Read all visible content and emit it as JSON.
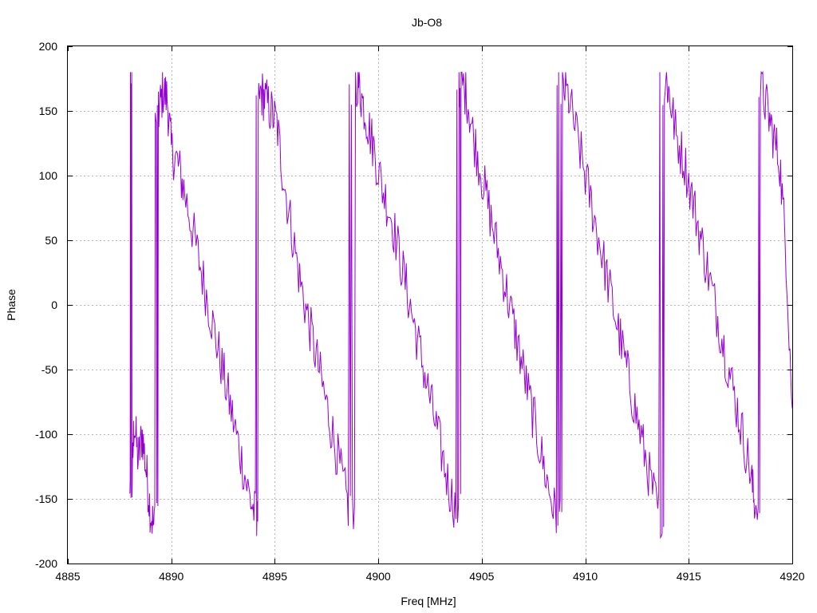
{
  "colors": {
    "series": "#9400d3",
    "grid": "#a0a0a0",
    "axis": "#000000",
    "background": "#ffffff"
  },
  "chart_data": {
    "type": "line",
    "title": "Jb-O8",
    "xlabel": "Freq [MHz]",
    "ylabel": "Phase",
    "xlim": [
      4885,
      4920
    ],
    "ylim": [
      -200,
      200
    ],
    "x_ticks": [
      4885,
      4890,
      4895,
      4900,
      4905,
      4910,
      4915,
      4920
    ],
    "y_ticks": [
      -200,
      -150,
      -100,
      -50,
      0,
      50,
      100,
      150,
      200
    ],
    "x_tick_labels": [
      "4885",
      "4890",
      "4895",
      "4900",
      "4905",
      "4910",
      "4915",
      "4920"
    ],
    "y_tick_labels": [
      "-200",
      "-150",
      "-100",
      "-50",
      "0",
      "50",
      "100",
      "150",
      "200"
    ],
    "grid": true,
    "legend": "none",
    "series": [
      {
        "color": "#9400d3",
        "description_note": "",
        "x": [
          4888.0,
          4888.1,
          4888.2,
          4888.4,
          4888.6,
          4888.8,
          4889.0,
          4889.2,
          4889.4,
          4889.6,
          4889.8,
          4890.0,
          4890.3,
          4890.6,
          4891.0,
          4891.4,
          4891.8,
          4892.2,
          4892.6,
          4893.0,
          4893.4,
          4893.8,
          4894.1,
          4894.3,
          4894.5,
          4894.8,
          4895.1,
          4895.4,
          4895.8,
          4896.2,
          4896.6,
          4897.0,
          4897.4,
          4897.8,
          4898.2,
          4898.6,
          4899.0,
          4899.2,
          4899.5,
          4899.8,
          4900.2,
          4900.6,
          4901.0,
          4901.4,
          4901.8,
          4902.2,
          4902.6,
          4903.0,
          4903.4,
          4903.8,
          4904.0,
          4904.3,
          4904.6,
          4905.0,
          4905.4,
          4905.8,
          4906.2,
          4906.6,
          4907.0,
          4907.4,
          4907.8,
          4908.2,
          4908.6,
          4908.9,
          4909.2,
          4909.6,
          4910.0,
          4910.4,
          4910.8,
          4911.2,
          4911.6,
          4912.0,
          4912.4,
          4912.8,
          4913.2,
          4913.6,
          4913.9,
          4914.1,
          4914.4,
          4914.8,
          4915.2,
          4915.6,
          4916.0,
          4916.4,
          4916.8,
          4917.2,
          4917.6,
          4918.0,
          4918.2,
          4918.5,
          4918.8,
          4919.1,
          4919.4,
          4919.7,
          4920.0
        ],
        "y": [
          180,
          -140,
          -90,
          -120,
          -100,
          -130,
          -160,
          -175,
          150,
          165,
          160,
          120,
          110,
          90,
          60,
          30,
          0,
          -30,
          -60,
          -90,
          -120,
          -150,
          -165,
          165,
          160,
          150,
          140,
          100,
          60,
          20,
          -10,
          -40,
          -70,
          -100,
          -130,
          -160,
          175,
          160,
          140,
          120,
          90,
          70,
          40,
          10,
          -20,
          -50,
          -80,
          -110,
          -140,
          -160,
          175,
          160,
          130,
          100,
          70,
          40,
          10,
          -20,
          -50,
          -80,
          -110,
          -140,
          -165,
          170,
          160,
          130,
          100,
          70,
          40,
          10,
          -20,
          -50,
          -80,
          -110,
          -140,
          -165,
          175,
          160,
          130,
          110,
          80,
          50,
          20,
          -10,
          -40,
          -70,
          -100,
          -130,
          -160,
          170,
          150,
          130,
          110,
          40,
          -80
        ]
      }
    ]
  }
}
